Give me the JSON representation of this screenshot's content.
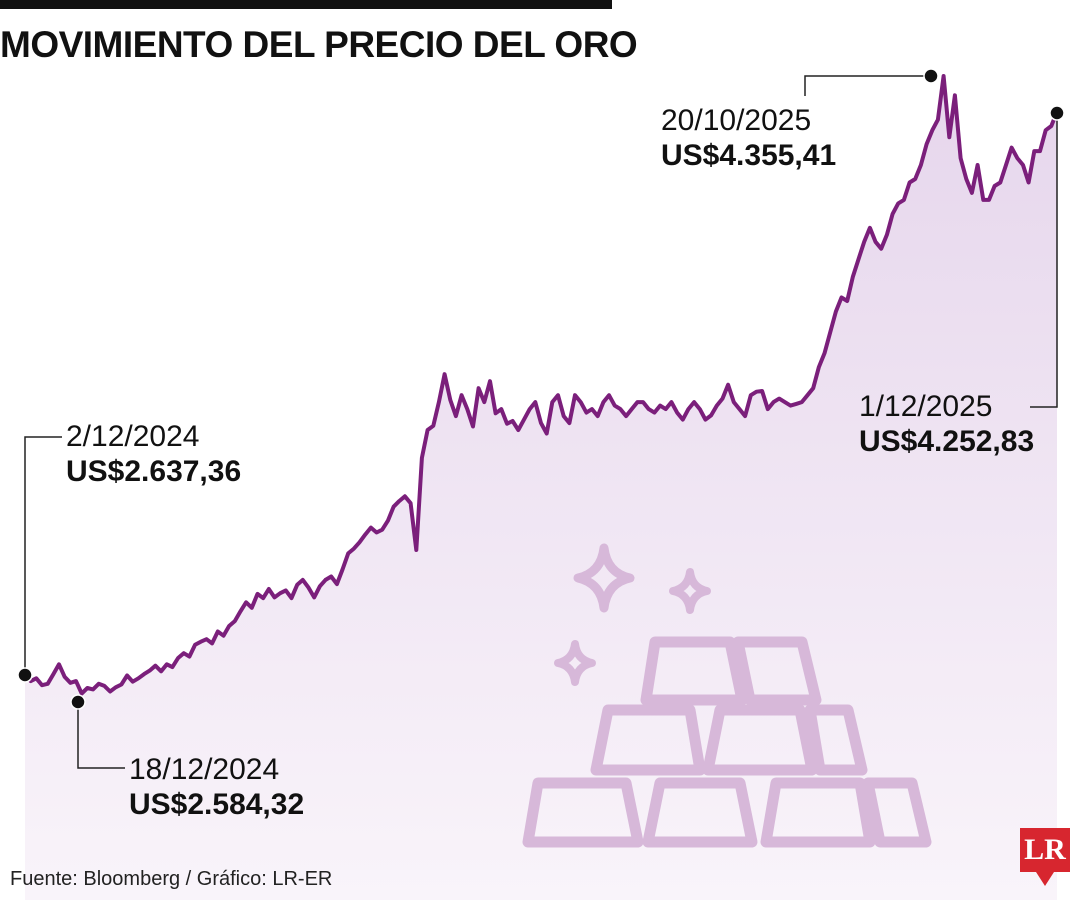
{
  "chart_data": {
    "type": "line",
    "title": "MOVIMIENTO DEL PRECIO DEL ORO",
    "xlabel": "",
    "ylabel": "",
    "x_start": "2/12/2024",
    "x_end": "1/12/2025",
    "ylim": [
      2400,
      4500
    ],
    "grid": false,
    "series": [
      {
        "values": [
          2637.36,
          2620,
          2628,
          2608,
          2612,
          2640,
          2668,
          2632,
          2615,
          2620,
          2584.32,
          2600,
          2596,
          2612,
          2606,
          2590,
          2602,
          2610,
          2636,
          2618,
          2628,
          2640,
          2650,
          2664,
          2648,
          2668,
          2660,
          2686,
          2700,
          2690,
          2724,
          2733,
          2740,
          2728,
          2762,
          2750,
          2778,
          2792,
          2820,
          2846,
          2830,
          2870,
          2858,
          2884,
          2860,
          2872,
          2880,
          2858,
          2896,
          2910,
          2888,
          2860,
          2892,
          2910,
          2920,
          2898,
          2940,
          2986,
          3000,
          3018,
          3040,
          3060,
          3046,
          3054,
          3080,
          3120,
          3136,
          3150,
          3130,
          2996,
          3260,
          3340,
          3352,
          3420,
          3500,
          3426,
          3380,
          3440,
          3400,
          3350,
          3460,
          3420,
          3480,
          3388,
          3400,
          3358,
          3366,
          3340,
          3370,
          3400,
          3420,
          3360,
          3330,
          3420,
          3440,
          3380,
          3360,
          3440,
          3420,
          3390,
          3400,
          3380,
          3420,
          3440,
          3410,
          3400,
          3380,
          3400,
          3420,
          3420,
          3400,
          3390,
          3410,
          3400,
          3420,
          3390,
          3370,
          3400,
          3420,
          3400,
          3370,
          3382,
          3410,
          3430,
          3470,
          3420,
          3400,
          3380,
          3440,
          3450,
          3452,
          3400,
          3420,
          3430,
          3420,
          3410,
          3415,
          3420,
          3440,
          3460,
          3520,
          3560,
          3620,
          3680,
          3720,
          3710,
          3780,
          3830,
          3880,
          3920,
          3880,
          3860,
          3900,
          3960,
          3990,
          4000,
          4050,
          4060,
          4100,
          4160,
          4200,
          4230,
          4355.41,
          4180,
          4300,
          4120,
          4060,
          4020,
          4100,
          4000,
          4000,
          4040,
          4050,
          4100,
          4150,
          4120,
          4100,
          4050,
          4140,
          4140,
          4200,
          4212,
          4252.83
        ]
      }
    ],
    "annotations": [
      {
        "date": "2/12/2024",
        "value": "US$2.637,36"
      },
      {
        "date": "18/12/2024",
        "value": "US$2.584,32"
      },
      {
        "date": "20/10/2025",
        "value": "US$4.355,41"
      },
      {
        "date": "1/12/2025",
        "value": "US$4.252,83"
      }
    ]
  },
  "source": "Fuente: Bloomberg / Gráfico: LR-ER",
  "logo_text": "LR",
  "colors": {
    "line": "#7b1f7b",
    "area_top": "#e6d6ec",
    "area_bottom": "#f9f4fa",
    "illustration": "#d7b8d9",
    "logo": "#d7262f"
  },
  "illustration": "gold-bars-icon"
}
